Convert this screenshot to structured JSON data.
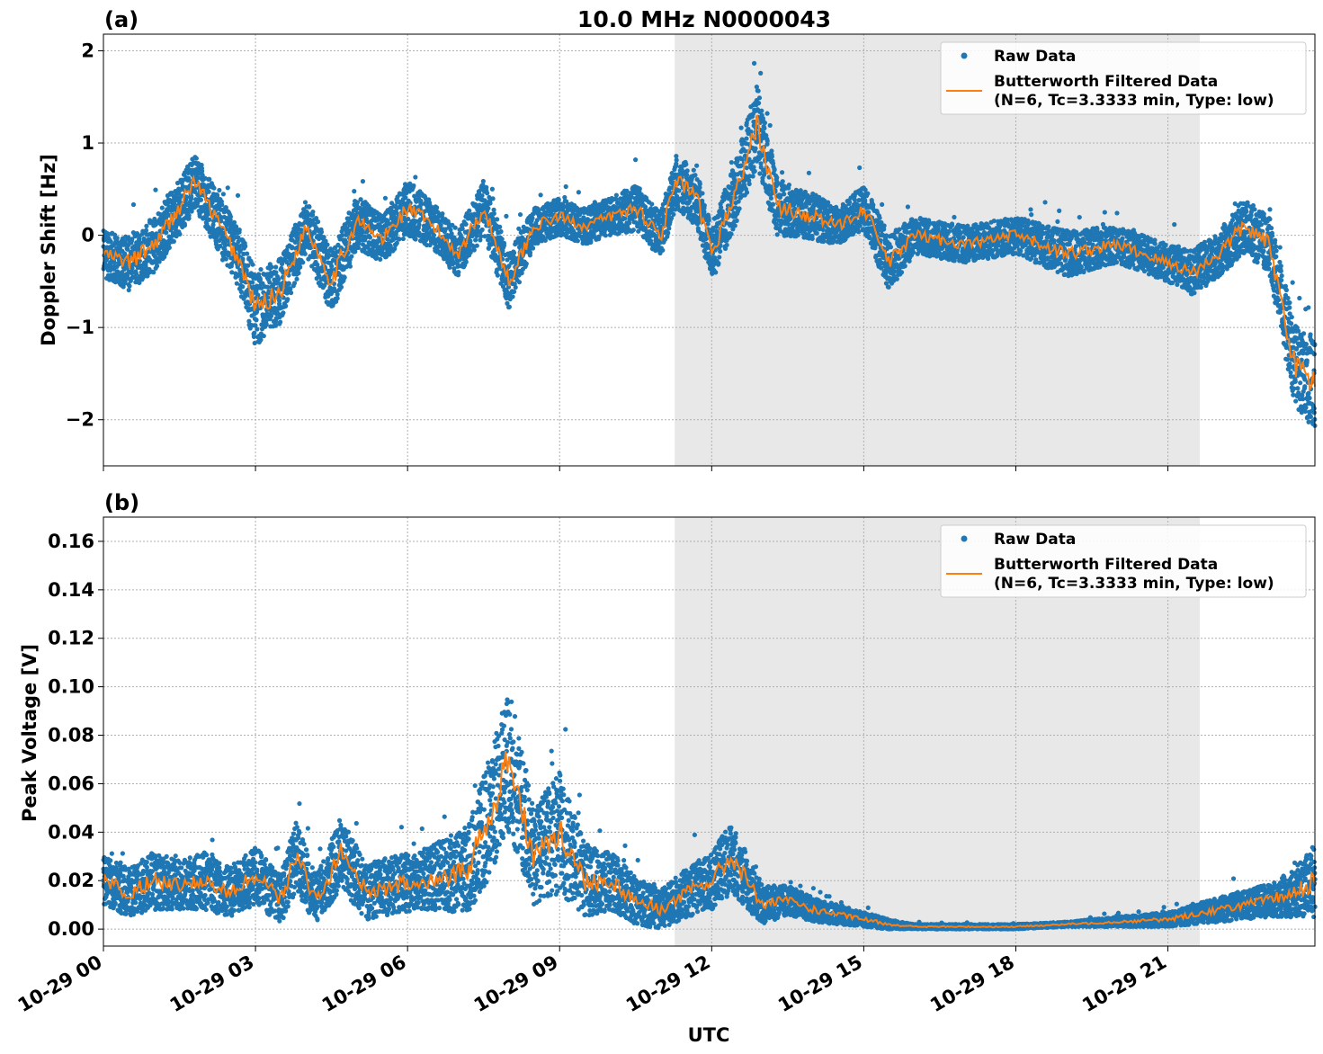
{
  "figure": {
    "title": "10.0 MHz N0000043"
  },
  "colors": {
    "raw": "#1f77b4",
    "filtered": "#ff7f0e",
    "shade": "#e8e8e8",
    "grid": "#b0b0b0"
  },
  "legend": {
    "raw_label": "Raw Data",
    "filtered_label_line1": "Butterworth Filtered Data",
    "filtered_label_line2": "(N=6, Tc=3.3333 min, Type: low)"
  },
  "chart_data": [
    {
      "type": "scatter",
      "panel_label": "(a)",
      "title": "10.0 MHz N0000043",
      "xlabel": "",
      "ylabel": "Doppler Shift [Hz]",
      "xlim_hours": [
        0,
        23.9
      ],
      "ylim": [
        -2.5,
        2.18
      ],
      "yticks": [
        2,
        1,
        0,
        -1,
        -2
      ],
      "ytick_labels": [
        "2",
        "1",
        "0",
        "−1",
        "−2"
      ],
      "shaded_interval_hours": [
        11.27,
        21.63
      ],
      "grid": true,
      "legend_position": "top-right",
      "series": [
        {
          "name": "Raw Data",
          "style": "points",
          "x_hours": [
            0,
            0.5,
            1,
            1.5,
            1.8,
            2.2,
            2.7,
            3.0,
            3.5,
            4.0,
            4.5,
            5.0,
            5.5,
            6.0,
            6.5,
            7.0,
            7.5,
            8.0,
            8.5,
            9.0,
            9.5,
            10.0,
            10.5,
            11.0,
            11.3,
            11.7,
            12.0,
            12.5,
            12.9,
            13.3,
            14.0,
            14.5,
            15.0,
            15.5,
            16.0,
            17.0,
            18.0,
            19.0,
            20.0,
            21.0,
            21.5,
            22.0,
            22.5,
            23.0,
            23.5,
            23.9
          ],
          "values": [
            -0.2,
            -0.3,
            -0.1,
            0.3,
            0.6,
            0.2,
            -0.3,
            -0.8,
            -0.6,
            0.1,
            -0.5,
            0.15,
            -0.05,
            0.3,
            0.1,
            -0.2,
            0.3,
            -0.5,
            0.1,
            0.2,
            0.1,
            0.2,
            0.3,
            0.0,
            0.6,
            0.4,
            -0.2,
            0.5,
            1.2,
            0.3,
            0.2,
            0.1,
            0.3,
            -0.3,
            0.0,
            -0.1,
            0.0,
            -0.2,
            -0.1,
            -0.3,
            -0.4,
            -0.2,
            0.1,
            -0.1,
            -1.4,
            -1.6
          ],
          "spread": [
            0.25,
            0.3,
            0.3,
            0.3,
            0.3,
            0.3,
            0.35,
            0.4,
            0.35,
            0.3,
            0.35,
            0.3,
            0.25,
            0.3,
            0.25,
            0.25,
            0.3,
            0.3,
            0.2,
            0.2,
            0.2,
            0.2,
            0.25,
            0.25,
            0.3,
            0.3,
            0.3,
            0.35,
            0.45,
            0.3,
            0.25,
            0.2,
            0.25,
            0.3,
            0.2,
            0.2,
            0.2,
            0.25,
            0.2,
            0.2,
            0.25,
            0.25,
            0.3,
            0.3,
            0.45,
            0.5
          ]
        },
        {
          "name": "Butterworth Filtered Data\n(N=6, Tc=3.3333 min, Type: low)",
          "style": "line",
          "x_hours": [
            0,
            0.5,
            1,
            1.5,
            1.8,
            2.2,
            2.7,
            3.0,
            3.5,
            4.0,
            4.5,
            5.0,
            5.5,
            6.0,
            6.5,
            7.0,
            7.5,
            8.0,
            8.5,
            9.0,
            9.5,
            10.0,
            10.5,
            11.0,
            11.3,
            11.7,
            12.0,
            12.5,
            12.9,
            13.3,
            14.0,
            14.5,
            15.0,
            15.5,
            16.0,
            17.0,
            18.0,
            19.0,
            20.0,
            21.0,
            21.5,
            22.0,
            22.5,
            23.0,
            23.5,
            23.9
          ],
          "values": [
            -0.2,
            -0.3,
            -0.1,
            0.3,
            0.6,
            0.2,
            -0.3,
            -0.8,
            -0.6,
            0.1,
            -0.5,
            0.15,
            -0.05,
            0.3,
            0.1,
            -0.2,
            0.3,
            -0.5,
            0.1,
            0.2,
            0.1,
            0.2,
            0.3,
            0.0,
            0.6,
            0.4,
            -0.2,
            0.5,
            1.2,
            0.3,
            0.2,
            0.1,
            0.3,
            -0.3,
            0.0,
            -0.1,
            0.0,
            -0.2,
            -0.1,
            -0.3,
            -0.4,
            -0.2,
            0.1,
            -0.1,
            -1.4,
            -1.6
          ]
        }
      ]
    },
    {
      "type": "scatter",
      "panel_label": "(b)",
      "title": "",
      "xlabel": "UTC",
      "ylabel": "Peak Voltage [V]",
      "xlim_hours": [
        0,
        23.9
      ],
      "ylim": [
        -0.007,
        0.17
      ],
      "yticks": [
        0.16,
        0.14,
        0.12,
        0.1,
        0.08,
        0.06,
        0.04,
        0.02,
        0.0
      ],
      "ytick_labels": [
        "0.16",
        "0.14",
        "0.12",
        "0.10",
        "0.08",
        "0.06",
        "0.04",
        "0.02",
        "0.00"
      ],
      "xticks_hours": [
        0,
        3,
        6,
        9,
        12,
        15,
        18,
        21
      ],
      "xtick_labels": [
        "10-29 00",
        "10-29 03",
        "10-29 06",
        "10-29 09",
        "10-29 12",
        "10-29 15",
        "10-29 18",
        "10-29 21"
      ],
      "shaded_interval_hours": [
        11.27,
        21.63
      ],
      "grid": true,
      "legend_position": "top-right",
      "series": [
        {
          "name": "Raw Data",
          "style": "points",
          "x_hours": [
            0,
            0.5,
            1,
            1.5,
            2,
            2.5,
            3,
            3.5,
            3.8,
            4.2,
            4.7,
            5.2,
            5.7,
            6.2,
            6.7,
            7.2,
            7.6,
            8.0,
            8.5,
            9.0,
            9.5,
            10.0,
            10.5,
            11.0,
            11.5,
            12.0,
            12.4,
            13.0,
            13.5,
            14.0,
            14.5,
            15.0,
            15.5,
            16.0,
            17.0,
            18.0,
            19.0,
            20.0,
            21.0,
            21.5,
            22.0,
            22.5,
            23.0,
            23.5,
            23.9
          ],
          "values": [
            0.02,
            0.015,
            0.02,
            0.018,
            0.02,
            0.015,
            0.022,
            0.012,
            0.03,
            0.012,
            0.032,
            0.015,
            0.018,
            0.02,
            0.022,
            0.025,
            0.045,
            0.07,
            0.03,
            0.04,
            0.02,
            0.02,
            0.012,
            0.008,
            0.015,
            0.02,
            0.03,
            0.01,
            0.012,
            0.008,
            0.006,
            0.004,
            0.002,
            0.001,
            0.001,
            0.001,
            0.002,
            0.003,
            0.004,
            0.006,
            0.008,
            0.01,
            0.012,
            0.015,
            0.02
          ],
          "spread": [
            0.01,
            0.01,
            0.012,
            0.01,
            0.012,
            0.01,
            0.012,
            0.01,
            0.015,
            0.01,
            0.015,
            0.012,
            0.012,
            0.012,
            0.015,
            0.018,
            0.025,
            0.03,
            0.02,
            0.025,
            0.015,
            0.012,
            0.01,
            0.008,
            0.01,
            0.012,
            0.015,
            0.008,
            0.006,
            0.005,
            0.004,
            0.003,
            0.002,
            0.001,
            0.001,
            0.001,
            0.001,
            0.002,
            0.003,
            0.004,
            0.005,
            0.006,
            0.007,
            0.01,
            0.015
          ]
        },
        {
          "name": "Butterworth Filtered Data\n(N=6, Tc=3.3333 min, Type: low)",
          "style": "line",
          "x_hours": [
            0,
            0.5,
            1,
            1.5,
            2,
            2.5,
            3,
            3.5,
            3.8,
            4.2,
            4.7,
            5.2,
            5.7,
            6.2,
            6.7,
            7.2,
            7.6,
            8.0,
            8.5,
            9.0,
            9.5,
            10.0,
            10.5,
            11.0,
            11.5,
            12.0,
            12.4,
            13.0,
            13.5,
            14.0,
            14.5,
            15.0,
            15.5,
            16.0,
            17.0,
            18.0,
            19.0,
            20.0,
            21.0,
            21.5,
            22.0,
            22.5,
            23.0,
            23.5,
            23.9
          ],
          "values": [
            0.02,
            0.015,
            0.02,
            0.018,
            0.02,
            0.015,
            0.022,
            0.012,
            0.03,
            0.012,
            0.032,
            0.015,
            0.018,
            0.02,
            0.022,
            0.025,
            0.045,
            0.07,
            0.03,
            0.04,
            0.02,
            0.02,
            0.012,
            0.008,
            0.015,
            0.02,
            0.03,
            0.01,
            0.012,
            0.008,
            0.006,
            0.004,
            0.002,
            0.001,
            0.001,
            0.001,
            0.002,
            0.003,
            0.004,
            0.006,
            0.008,
            0.01,
            0.012,
            0.015,
            0.02
          ]
        }
      ]
    }
  ]
}
